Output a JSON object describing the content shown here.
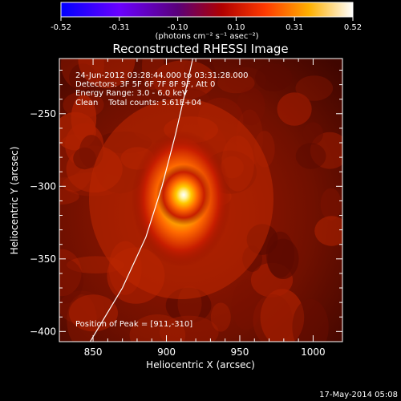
{
  "colorbar": {
    "ticks": [
      "-0.52",
      "-0.31",
      "-0.10",
      "0.10",
      "0.31",
      "0.52"
    ],
    "unit_label": "(photons cm⁻² s⁻¹ asec⁻²)"
  },
  "chart_data": {
    "type": "heatmap",
    "title": "Reconstructed RHESSI Image",
    "xlabel": "Heliocentric X (arcsec)",
    "ylabel": "Heliocentric Y (arcsec)",
    "xlim": [
      827,
      1020
    ],
    "ylim": [
      -407,
      -212
    ],
    "xticks": [
      850,
      900,
      950,
      1000
    ],
    "yticks": [
      -250,
      -300,
      -350,
      -400
    ],
    "colorbar_range": [
      -0.52,
      0.52
    ],
    "peak_position": [
      911,
      -310
    ],
    "annotations": [
      "24-Jun-2012 03:28:44.000 to 03:31:28.000",
      "Detectors: 3F 5F 6F 7F 8F 9F, Att 0",
      "Energy Range: 3.0 - 6.0 keV",
      "Clean    Total counts: 5.61E+04"
    ],
    "peak_label": "Position of Peak = [911,-310]",
    "limb_curve": [
      [
        848,
        -407
      ],
      [
        870,
        -370
      ],
      [
        886,
        -335
      ],
      [
        897,
        -300
      ],
      [
        906,
        -265
      ],
      [
        914,
        -230
      ],
      [
        918,
        -212
      ]
    ]
  },
  "footer": {
    "timestamp": "17-May-2014 05:08"
  }
}
